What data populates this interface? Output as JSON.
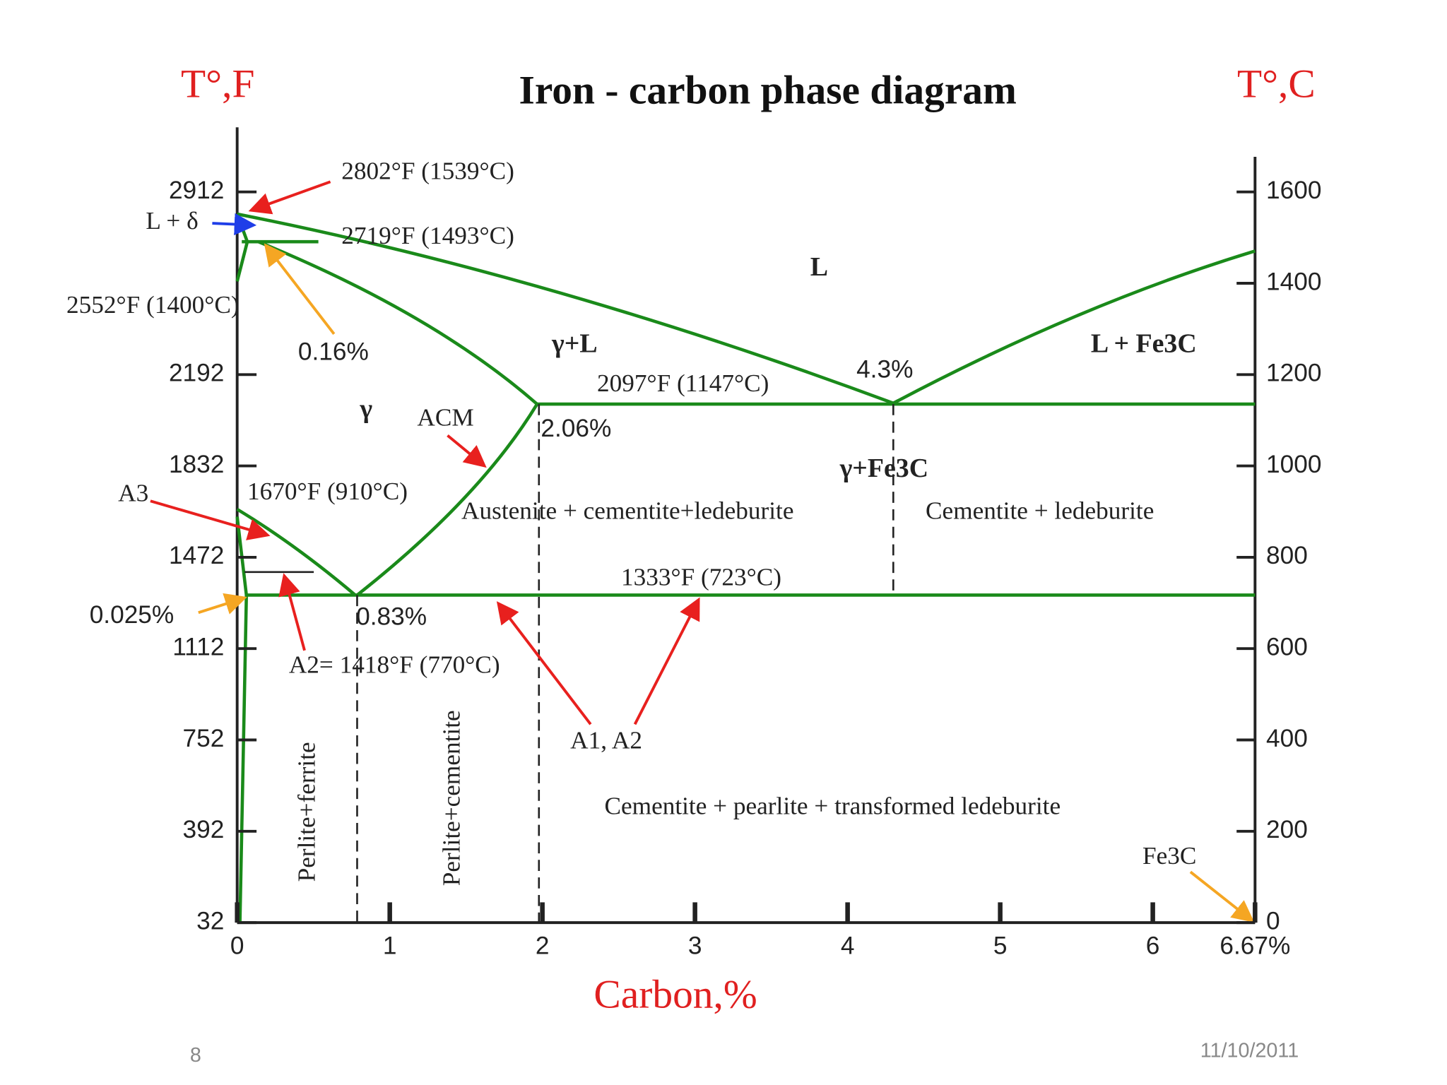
{
  "title": "Iron - carbon phase diagram",
  "left_axis_title": "T°,F",
  "right_axis_title": "T°,C",
  "x_axis_title": "Carbon,%",
  "x_ticks": [
    0,
    1,
    2,
    3,
    4,
    5,
    6,
    {
      "value": 6.67,
      "label": "6.67%"
    }
  ],
  "left_ticks": [
    32,
    392,
    752,
    1112,
    1472,
    1832,
    2192,
    2912
  ],
  "right_ticks": [
    0,
    200,
    400,
    600,
    800,
    1000,
    1200,
    1400,
    1600
  ],
  "labels": [
    "2802°F (1539°C)",
    "L + δ",
    "2719°F (1493°C)",
    "2552°F (1400°C)",
    "0.16%",
    "L",
    "γ+L",
    "L + Fe3C",
    "2097°F (1147°C)",
    "4.3%",
    "γ",
    "ACM",
    "2.06%",
    "γ+Fe3C",
    "A3",
    "1670°F (910°C)",
    "Austenite + cementite+ledeburite",
    "Cementite + ledeburite",
    "1333°F (723°C)",
    "0.025%",
    "0.83%",
    "A2= 1418°F (770°C)",
    "Perlite+ferrite",
    "Perlite+cementite",
    "A1, A2",
    "Cementite + pearlite + transformed  ledeburite",
    "Fe3C"
  ],
  "slide_number": "8",
  "date": "11/10/2011"
}
